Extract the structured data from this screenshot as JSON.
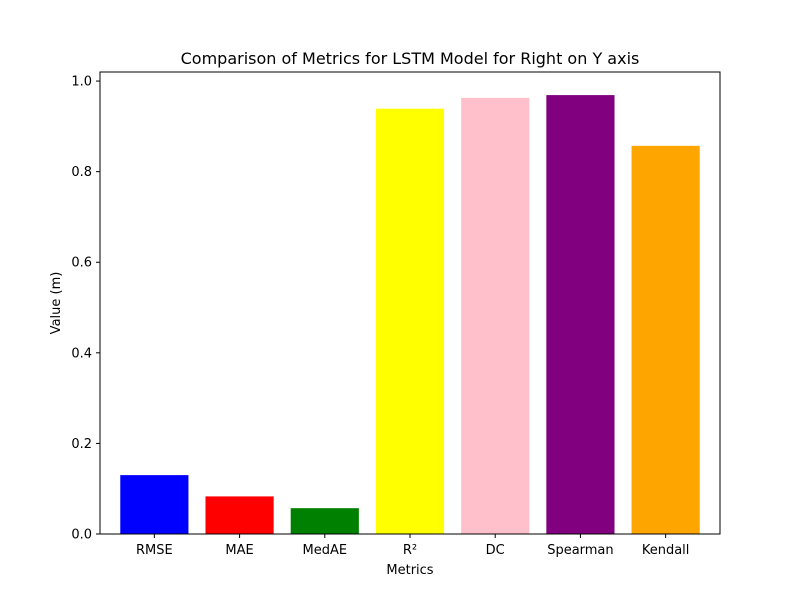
{
  "chart_data": {
    "type": "bar",
    "title": "Comparison of Metrics for LSTM Model for Right on Y axis",
    "xlabel": "Metrics",
    "ylabel": "Value (m)",
    "categories": [
      "RMSE",
      "MAE",
      "MedAE",
      "R²",
      "DC",
      "Spearman",
      "Kendall"
    ],
    "values": [
      0.13,
      0.083,
      0.057,
      0.939,
      0.963,
      0.969,
      0.857
    ],
    "colors": [
      "#0000ff",
      "#ff0000",
      "#008000",
      "#ffff00",
      "#ffc0cb",
      "#800080",
      "#ffa500"
    ],
    "ylim": [
      0,
      1.02
    ],
    "yticks": [
      0.0,
      0.2,
      0.4,
      0.6,
      0.8,
      1.0
    ],
    "ytick_labels": [
      "0.0",
      "0.2",
      "0.4",
      "0.6",
      "0.8",
      "1.0"
    ],
    "grid": false,
    "legend": false
  }
}
